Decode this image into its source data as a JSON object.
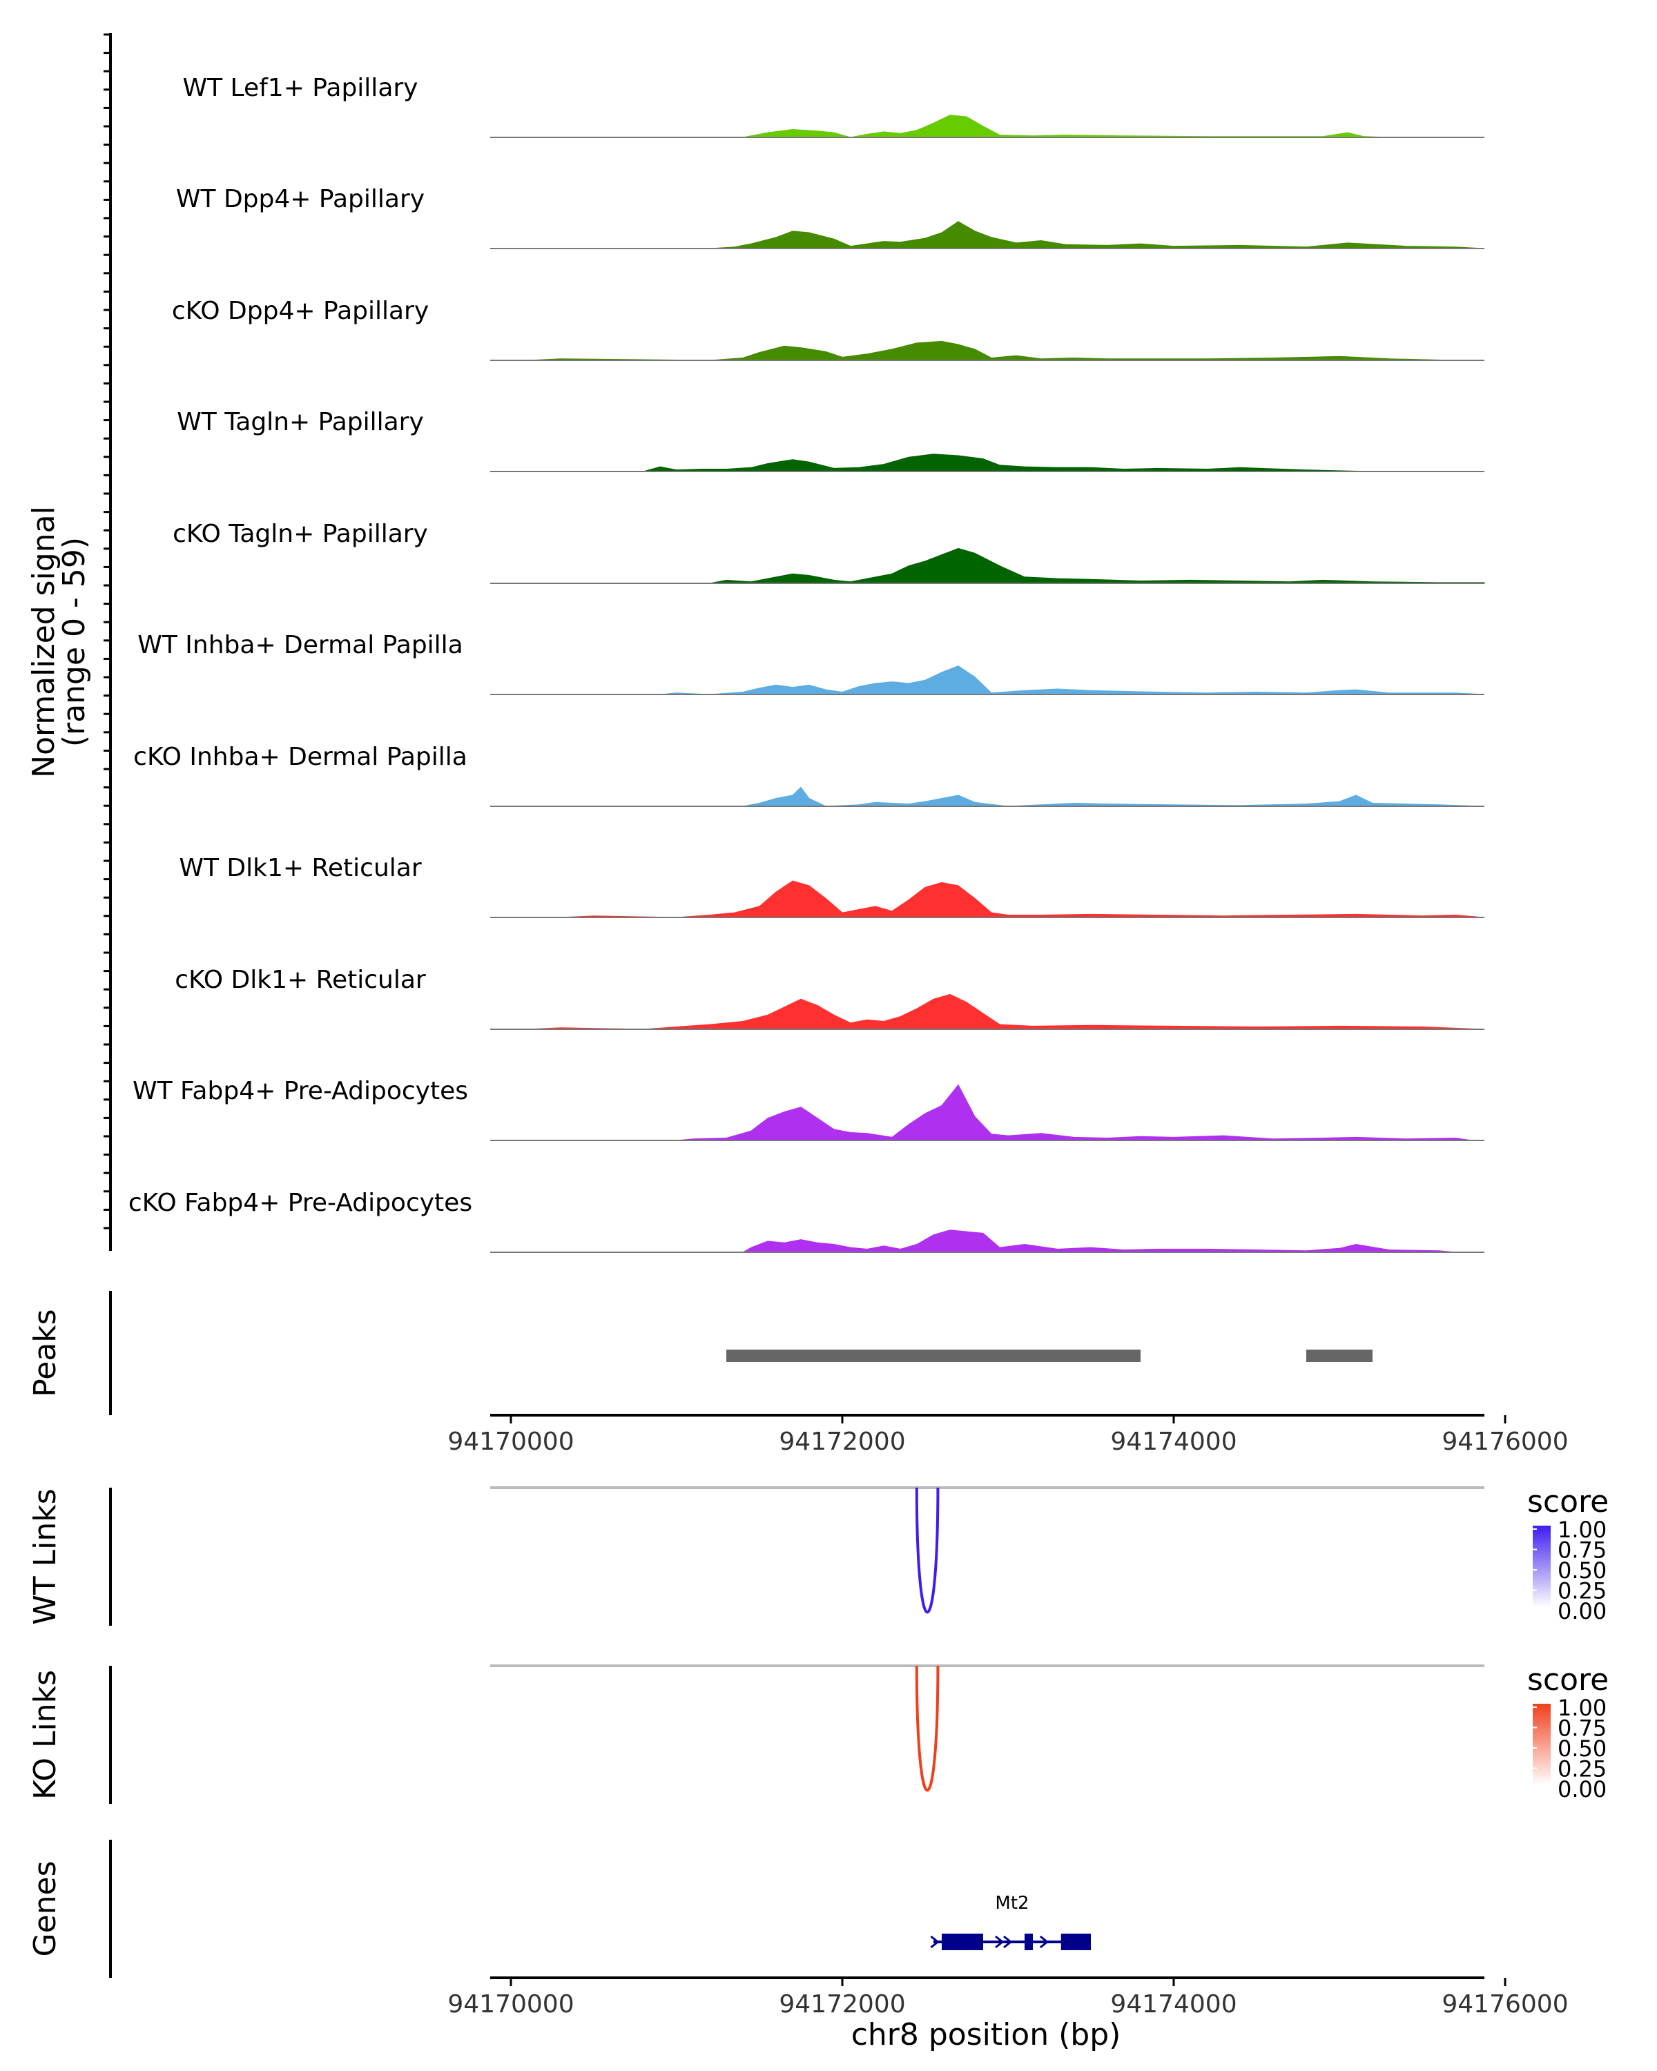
{
  "chart_data": [
    {
      "type": "area",
      "panel": "coverage",
      "ylabel": "Normalized signal",
      "ylabel_range": "(range 0 - 59)",
      "ylim": [
        0,
        59
      ],
      "xlim": [
        94170000,
        94176000
      ],
      "series": [
        {
          "name": "WT Lef1+ Papillary",
          "color": "#66CC00",
          "x": [
            94171400,
            94171550,
            94171700,
            94171850,
            94171950,
            94172050,
            94172150,
            94172250,
            94172350,
            94172450,
            94172550,
            94172650,
            94172750,
            94172850,
            94172950,
            94173150,
            94173350,
            94173700,
            94174200,
            94174650,
            94174900,
            94175050,
            94175150,
            94175300
          ],
          "y": [
            0,
            6,
            10,
            8,
            6,
            0,
            4,
            7,
            5,
            9,
            18,
            28,
            26,
            14,
            3,
            2,
            3,
            2,
            1,
            1,
            1,
            6,
            1,
            0
          ]
        },
        {
          "name": "WT Dpp4+ Papillary",
          "color": "#458B00",
          "x": [
            94171200,
            94171350,
            94171450,
            94171600,
            94171700,
            94171800,
            94171950,
            94172050,
            94172150,
            94172250,
            94172350,
            94172500,
            94172600,
            94172700,
            94172800,
            94172900,
            94173050,
            94173200,
            94173350,
            94173600,
            94173800,
            94174000,
            94174400,
            94174800,
            94175050,
            94175400,
            94175700,
            94176000
          ],
          "y": [
            0,
            2,
            6,
            14,
            22,
            20,
            12,
            3,
            6,
            9,
            8,
            13,
            20,
            34,
            22,
            14,
            7,
            10,
            5,
            4,
            6,
            3,
            4,
            2,
            7,
            3,
            2,
            0
          ]
        },
        {
          "name": "cKO Dpp4+ Papillary",
          "color": "#458B00",
          "x": [
            94170100,
            94170300,
            94171200,
            94171400,
            94171500,
            94171650,
            94171750,
            94171900,
            94172000,
            94172150,
            94172300,
            94172450,
            94172600,
            94172700,
            94172800,
            94172900,
            94173050,
            94173200,
            94173400,
            94173600,
            94173800,
            94174200,
            94174600,
            94175000,
            94175300,
            94175700
          ],
          "y": [
            0,
            2,
            0,
            3,
            10,
            18,
            16,
            11,
            4,
            8,
            14,
            22,
            24,
            20,
            14,
            3,
            6,
            2,
            3,
            2,
            2,
            2,
            3,
            5,
            2,
            0
          ]
        },
        {
          "name": "WT Tagln+ Papillary",
          "color": "#006400",
          "x": [
            94170800,
            94170900,
            94171000,
            94171150,
            94171300,
            94171450,
            94171550,
            94171700,
            94171800,
            94171950,
            94172100,
            94172250,
            94172400,
            94172550,
            94172700,
            94172850,
            94172950,
            94173100,
            94173300,
            94173500,
            94173700,
            94173900,
            94174200,
            94174400,
            94174800,
            94175000,
            94175200
          ],
          "y": [
            0,
            6,
            2,
            3,
            3,
            5,
            10,
            15,
            12,
            4,
            5,
            9,
            18,
            22,
            20,
            16,
            8,
            6,
            5,
            5,
            3,
            4,
            3,
            5,
            2,
            1,
            0
          ]
        },
        {
          "name": "cKO Tagln+ Papillary",
          "color": "#006400",
          "x": [
            94171200,
            94171300,
            94171450,
            94171550,
            94171700,
            94171800,
            94171950,
            94172050,
            94172150,
            94172300,
            94172400,
            94172500,
            94172600,
            94172700,
            94172800,
            94172950,
            94173100,
            94173300,
            94173500,
            94173800,
            94174100,
            94174400,
            94174700,
            94174900,
            94175200,
            94175600,
            94175900,
            94176000
          ],
          "y": [
            0,
            4,
            2,
            6,
            12,
            10,
            4,
            2,
            6,
            12,
            22,
            28,
            36,
            44,
            38,
            22,
            8,
            6,
            5,
            3,
            4,
            3,
            2,
            4,
            2,
            1,
            1,
            0
          ]
        },
        {
          "name": "WT Inhba+ Dermal Papilla",
          "color": "#5DADE2",
          "x": [
            94170900,
            94171000,
            94171200,
            94171400,
            94171500,
            94171600,
            94171700,
            94171800,
            94171900,
            94172000,
            94172100,
            94172200,
            94172300,
            94172400,
            94172500,
            94172600,
            94172700,
            94172800,
            94172900,
            94173100,
            94173300,
            94173500,
            94173700,
            94173900,
            94174200,
            94174500,
            94174800,
            94175000,
            94175100,
            94175300,
            94175700,
            94175900
          ],
          "y": [
            0,
            2,
            0,
            3,
            8,
            12,
            9,
            12,
            6,
            3,
            10,
            14,
            16,
            14,
            18,
            28,
            36,
            22,
            2,
            5,
            7,
            5,
            4,
            3,
            2,
            3,
            2,
            5,
            6,
            2,
            2,
            0
          ]
        },
        {
          "name": "cKO Inhba+ Dermal Papilla",
          "color": "#5DADE2",
          "x": [
            94171400,
            94171500,
            94171600,
            94171700,
            94171750,
            94171800,
            94171900,
            94172100,
            94172200,
            94172300,
            94172400,
            94172500,
            94172600,
            94172700,
            94172800,
            94173000,
            94173200,
            94173400,
            94173600,
            94174000,
            94174400,
            94174800,
            94175000,
            94175100,
            94175200,
            94175400,
            94175600,
            94175900
          ],
          "y": [
            0,
            4,
            10,
            14,
            24,
            10,
            0,
            2,
            5,
            4,
            3,
            6,
            10,
            14,
            5,
            0,
            2,
            4,
            3,
            2,
            1,
            3,
            6,
            14,
            4,
            3,
            2,
            0
          ]
        },
        {
          "name": "WT Dlk1+ Reticular",
          "color": "#FF3030",
          "x": [
            94170300,
            94170500,
            94171000,
            94171200,
            94171350,
            94171500,
            94171600,
            94171700,
            94171800,
            94171900,
            94172000,
            94172100,
            94172200,
            94172300,
            94172400,
            94172500,
            94172600,
            94172700,
            94172800,
            94172900,
            94173000,
            94173200,
            94173500,
            94173900,
            94174300,
            94174700,
            94175100,
            94175500,
            94175700,
            94175900
          ],
          "y": [
            0,
            2,
            0,
            3,
            6,
            14,
            32,
            46,
            40,
            24,
            6,
            10,
            14,
            8,
            22,
            38,
            44,
            40,
            24,
            6,
            3,
            3,
            4,
            3,
            2,
            3,
            4,
            2,
            3,
            0
          ]
        },
        {
          "name": "cKO Dlk1+ Reticular",
          "color": "#FF3030",
          "x": [
            94170100,
            94170300,
            94170800,
            94171000,
            94171200,
            94171400,
            94171550,
            94171650,
            94171750,
            94171850,
            94171950,
            94172050,
            94172150,
            94172250,
            94172350,
            94172450,
            94172550,
            94172650,
            94172750,
            94172850,
            94172950,
            94173150,
            94173500,
            94174000,
            94174500,
            94175000,
            94175500,
            94175900
          ],
          "y": [
            0,
            2,
            0,
            3,
            6,
            10,
            18,
            28,
            38,
            30,
            18,
            8,
            12,
            10,
            16,
            26,
            38,
            44,
            34,
            20,
            6,
            4,
            5,
            4,
            3,
            4,
            3,
            0
          ]
        },
        {
          "name": "WT Fabp4+ Pre-Adipocytes",
          "color": "#B030F0",
          "x": [
            94171000,
            94171100,
            94171300,
            94171450,
            94171550,
            94171650,
            94171750,
            94171850,
            94171950,
            94172050,
            94172150,
            94172300,
            94172400,
            94172500,
            94172600,
            94172700,
            94172800,
            94172900,
            94173000,
            94173200,
            94173400,
            94173600,
            94173800,
            94174000,
            94174300,
            94174600,
            94174900,
            94175100,
            94175400,
            94175700,
            94175800
          ],
          "y": [
            0,
            2,
            3,
            12,
            28,
            36,
            42,
            28,
            14,
            10,
            9,
            4,
            20,
            34,
            44,
            70,
            30,
            8,
            6,
            9,
            4,
            3,
            5,
            4,
            6,
            2,
            3,
            4,
            2,
            3,
            0
          ]
        },
        {
          "name": "cKO Fabp4+ Pre-Adipocytes",
          "color": "#B030F0",
          "x": [
            94171400,
            94171450,
            94171550,
            94171650,
            94171750,
            94171850,
            94171950,
            94172050,
            94172150,
            94172250,
            94172350,
            94172450,
            94172550,
            94172650,
            94172750,
            94172850,
            94172950,
            94173100,
            94173300,
            94173500,
            94173700,
            94173900,
            94174200,
            94174500,
            94174800,
            94175000,
            94175100,
            94175300,
            94175600,
            94175700
          ],
          "y": [
            0,
            6,
            14,
            12,
            16,
            12,
            10,
            6,
            4,
            8,
            4,
            10,
            22,
            28,
            26,
            24,
            6,
            10,
            4,
            6,
            3,
            4,
            4,
            3,
            2,
            5,
            10,
            3,
            2,
            0
          ]
        }
      ]
    },
    {
      "type": "bar",
      "panel": "peaks",
      "ylabel": "Peaks",
      "peaks": [
        {
          "start": 94171300,
          "end": 94173800
        },
        {
          "start": 94174800,
          "end": 94175200
        }
      ],
      "xlim": [
        94170000,
        94176000
      ],
      "xticks": [
        94170000,
        94172000,
        94174000,
        94176000
      ],
      "xtick_labels": [
        "94170000",
        "94172000",
        "94174000",
        "94176000"
      ]
    },
    {
      "type": "line",
      "panel": "links",
      "tracks": [
        {
          "ylabel": "WT Links",
          "legend_title": "score",
          "color": "#3F1CF0",
          "legend_max_color": "#3F1CF0",
          "link_start": 94172470,
          "link_end": 94172610,
          "score": 1.0,
          "legend_ticks": [
            "1.00",
            "0.75",
            "0.50",
            "0.25",
            "0.00"
          ]
        },
        {
          "ylabel": "KO Links",
          "legend_title": "score",
          "color": "#F03F1C",
          "legend_max_color": "#F03F1C",
          "link_start": 94172470,
          "link_end": 94172610,
          "score": 1.0,
          "legend_ticks": [
            "1.00",
            "0.75",
            "0.50",
            "0.25",
            "0.00"
          ]
        }
      ]
    },
    {
      "type": "line",
      "panel": "genes",
      "ylabel": "Genes",
      "gene": {
        "name": "Mt2",
        "start": 94172550,
        "end": 94173500,
        "color": "#00008B",
        "exons": [
          [
            94172600,
            94172850
          ],
          [
            94173100,
            94173150
          ],
          [
            94173320,
            94173500
          ]
        ]
      },
      "xlim": [
        94170000,
        94176000
      ],
      "xticks": [
        94170000,
        94172000,
        94174000,
        94176000
      ],
      "xtick_labels": [
        "94170000",
        "94172000",
        "94174000",
        "94176000"
      ],
      "xlabel": "chr8 position (bp)"
    }
  ]
}
